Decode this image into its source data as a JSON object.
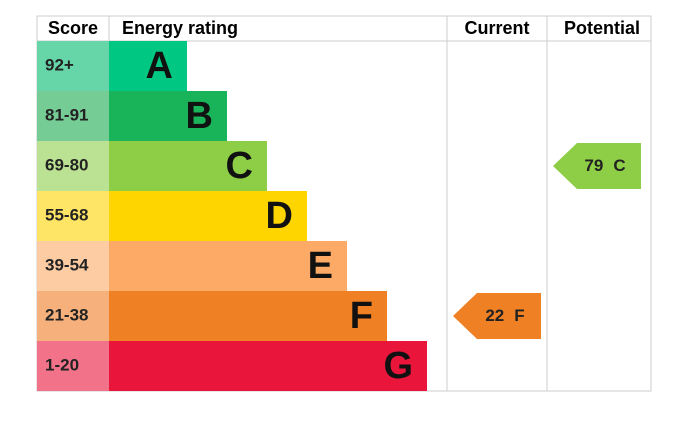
{
  "header": {
    "score": "Score",
    "rating": "Energy rating",
    "current": "Current",
    "potential": "Potential"
  },
  "rows": [
    {
      "score": "92+",
      "band": "A",
      "color": "#00c781",
      "light": "#66d6a9"
    },
    {
      "score": "81-91",
      "band": "B",
      "color": "#19b459",
      "light": "#75cc95"
    },
    {
      "score": "69-80",
      "band": "C",
      "color": "#8dce46",
      "light": "#bbe292"
    },
    {
      "score": "55-68",
      "band": "D",
      "color": "#ffd500",
      "light": "#ffe566"
    },
    {
      "score": "39-54",
      "band": "E",
      "color": "#fcaa65",
      "light": "#fdcca3"
    },
    {
      "score": "21-38",
      "band": "F",
      "color": "#ef8023",
      "light": "#f5b07b"
    },
    {
      "score": "1-20",
      "band": "G",
      "color": "#e9153b",
      "light": "#f27389"
    }
  ],
  "current": {
    "score": 22,
    "band": "F"
  },
  "potential": {
    "score": 79,
    "band": "C"
  }
}
